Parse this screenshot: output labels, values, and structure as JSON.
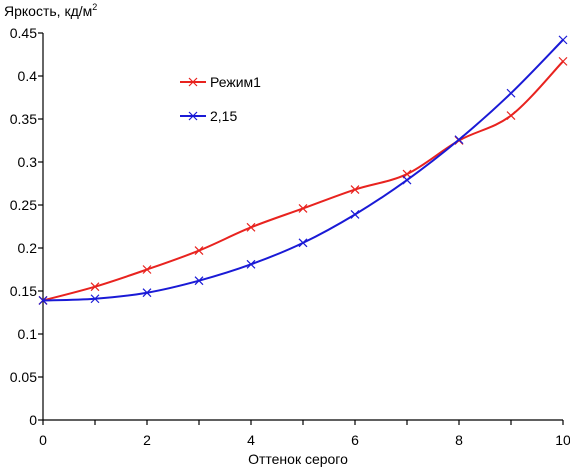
{
  "chart_data": {
    "type": "line",
    "ylabel": "Яркость, кд/м",
    "ylabel_superscript": "2",
    "xlabel": "Оттенок серого",
    "xlim": [
      0,
      10
    ],
    "ylim": [
      0,
      0.45
    ],
    "x_ticks": [
      0,
      2,
      4,
      6,
      8,
      10
    ],
    "y_ticks": [
      0,
      0.05,
      0.1,
      0.15,
      0.2,
      0.25,
      0.3,
      0.35,
      0.4,
      0.45
    ],
    "y_tick_labels": [
      "0",
      "0.05",
      "0.1",
      "0.15",
      "0.2",
      "0.25",
      "0.3",
      "0.35",
      "0.4",
      "0.45"
    ],
    "grid": false,
    "legend_position": "top-left inside plot",
    "x": [
      0,
      1,
      2,
      3,
      4,
      5,
      6,
      7,
      8,
      9,
      10
    ],
    "series": [
      {
        "name": "Режим1",
        "color": "#e8231f",
        "marker": "x",
        "values": [
          0.139,
          0.155,
          0.175,
          0.197,
          0.224,
          0.246,
          0.268,
          0.286,
          0.325,
          0.354,
          0.417
        ]
      },
      {
        "name": "2,15",
        "color": "#1a1ad6",
        "marker": "x",
        "values": [
          0.139,
          0.141,
          0.148,
          0.162,
          0.181,
          0.206,
          0.239,
          0.279,
          0.326,
          0.38,
          0.442
        ]
      }
    ]
  }
}
